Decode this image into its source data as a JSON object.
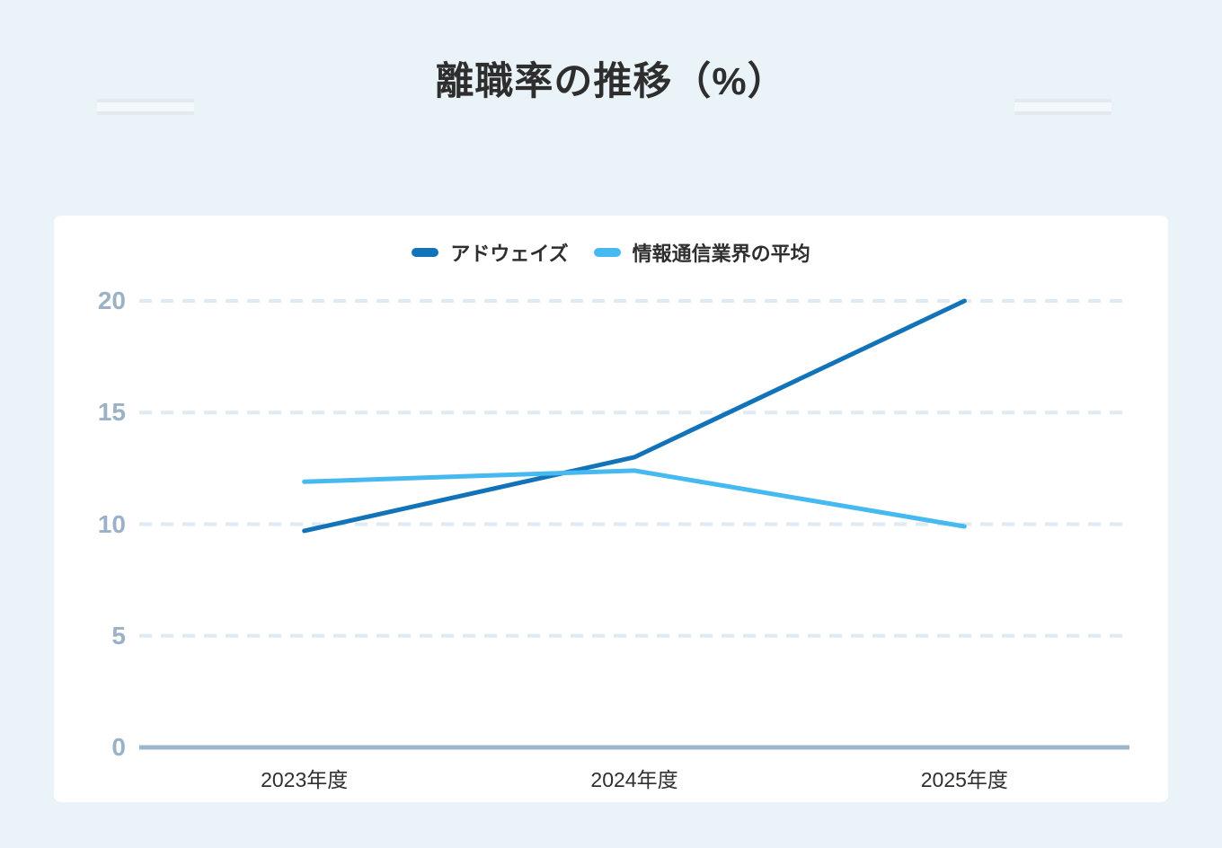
{
  "page": {
    "title": "離職率の推移（%）",
    "background_color": "#e9f3f8",
    "card_color": "#ffffff"
  },
  "chart_data": {
    "type": "line",
    "title": "離職率の推移（%）",
    "categories": [
      "2023年度",
      "2024年度",
      "2025年度"
    ],
    "series": [
      {
        "name": "アドウェイズ",
        "color": "#1373b8",
        "values": [
          9.7,
          13.0,
          20.0
        ]
      },
      {
        "name": "情報通信業界の平均",
        "color": "#45b9f0",
        "values": [
          11.9,
          12.4,
          9.9
        ]
      }
    ],
    "ylim": [
      0,
      20
    ],
    "yticks": [
      0,
      5,
      10,
      15,
      20
    ],
    "xlabel": "",
    "ylabel": "",
    "grid": "horizontal-dashed",
    "legend_position": "top-center",
    "colors": {
      "axis_line": "#9fb6ca",
      "grid_line": "#dfeaf3",
      "y_tick_label": "#9ab1c6",
      "x_tick_label": "#2f2f2f",
      "title_text": "#2e2e2e",
      "legend_text": "#2e2e2e"
    }
  }
}
